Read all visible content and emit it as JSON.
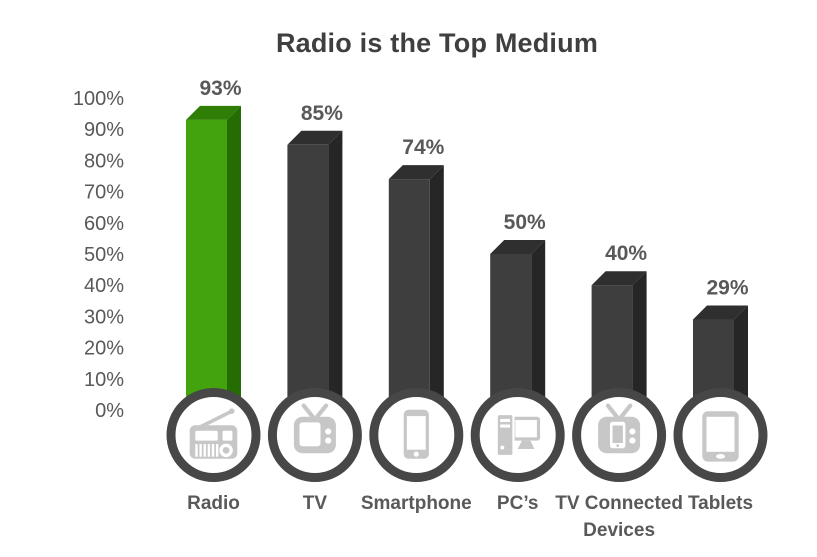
{
  "chart_data": {
    "type": "bar",
    "title": "Radio is the Top Medium",
    "categories": [
      "Radio",
      "TV",
      "Smartphone",
      "PC’s",
      "TV Connected Devices",
      "Tablets"
    ],
    "category_lines": [
      [
        "Radio"
      ],
      [
        "TV"
      ],
      [
        "Smartphone"
      ],
      [
        "PC’s"
      ],
      [
        "TV Connected",
        "Devices"
      ],
      [
        "Tablets"
      ]
    ],
    "values": [
      93,
      85,
      74,
      50,
      40,
      29
    ],
    "value_labels": [
      "93%",
      "85%",
      "74%",
      "50%",
      "40%",
      "29%"
    ],
    "icons": [
      "radio-icon",
      "tv-icon",
      "smartphone-icon",
      "pc-icon",
      "tv-connected-icon",
      "tablet-icon"
    ],
    "yticks": [
      "100%",
      "90%",
      "80%",
      "70%",
      "60%",
      "50%",
      "40%",
      "30%",
      "20%",
      "10%",
      "0%"
    ],
    "ylim": [
      0,
      100
    ],
    "xlabel": "",
    "ylabel": "",
    "grid": false,
    "legend": null,
    "highlight_index": 0,
    "bar_style": "3d",
    "colors": {
      "highlight_front": "#43A30C",
      "highlight_top": "#2F7F07",
      "highlight_side": "#256D03",
      "bar_front": "#3E3E3E",
      "bar_top": "#2F2F2F",
      "bar_side": "#262626",
      "title_text": "#3F3F3F",
      "label_text": "#595959",
      "icon_ring": "#474747",
      "icon_glyph": "#C7C7C7",
      "icon_bg": "#FFFFFF",
      "background": "#FFFFFF"
    }
  }
}
